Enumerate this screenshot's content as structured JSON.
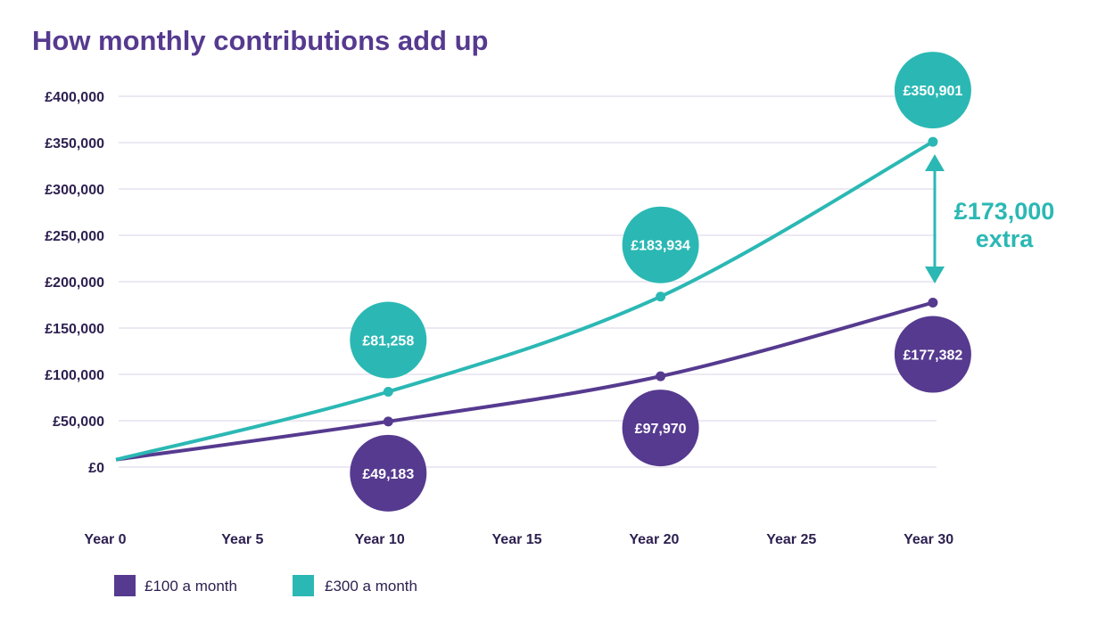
{
  "colors": {
    "purple": "#563a8f",
    "teal": "#2bb8b4",
    "grid": "#e6e2ef",
    "text": "#2d1f4f"
  },
  "chart_data": {
    "type": "line",
    "title": "How monthly contributions add up",
    "xlabel": "",
    "ylabel": "",
    "x": [
      0,
      10,
      20,
      30
    ],
    "x_ticks": [
      0,
      5,
      10,
      15,
      20,
      25,
      30
    ],
    "x_tick_labels": [
      "Year 0",
      "Year 5",
      "Year 10",
      "Year 15",
      "Year 20",
      "Year 25",
      "Year 30"
    ],
    "ylim": [
      0,
      400000
    ],
    "y_ticks": [
      0,
      50000,
      100000,
      150000,
      200000,
      250000,
      300000,
      350000,
      400000
    ],
    "y_tick_labels": [
      "£0",
      "£50,000",
      "£100,000",
      "£150,000",
      "£200,000",
      "£250,000",
      "£300,000",
      "£350,000",
      "£400,000"
    ],
    "grid": true,
    "legend_placement": "bottom-left",
    "series": [
      {
        "name": "£100 a month",
        "color": "#563a8f",
        "values": [
          8000,
          49183,
          97970,
          177382
        ],
        "data_labels": [
          "",
          "£49,183",
          "£97,970",
          "£177,382"
        ],
        "label_position": "below"
      },
      {
        "name": "£300 a month",
        "color": "#2bb8b4",
        "values": [
          8000,
          81258,
          183934,
          350901
        ],
        "data_labels": [
          "",
          "£81,258",
          "£183,934",
          "£350,901"
        ],
        "label_position": "above"
      }
    ],
    "annotation": {
      "line1": "£173,000",
      "line2": "extra"
    }
  }
}
